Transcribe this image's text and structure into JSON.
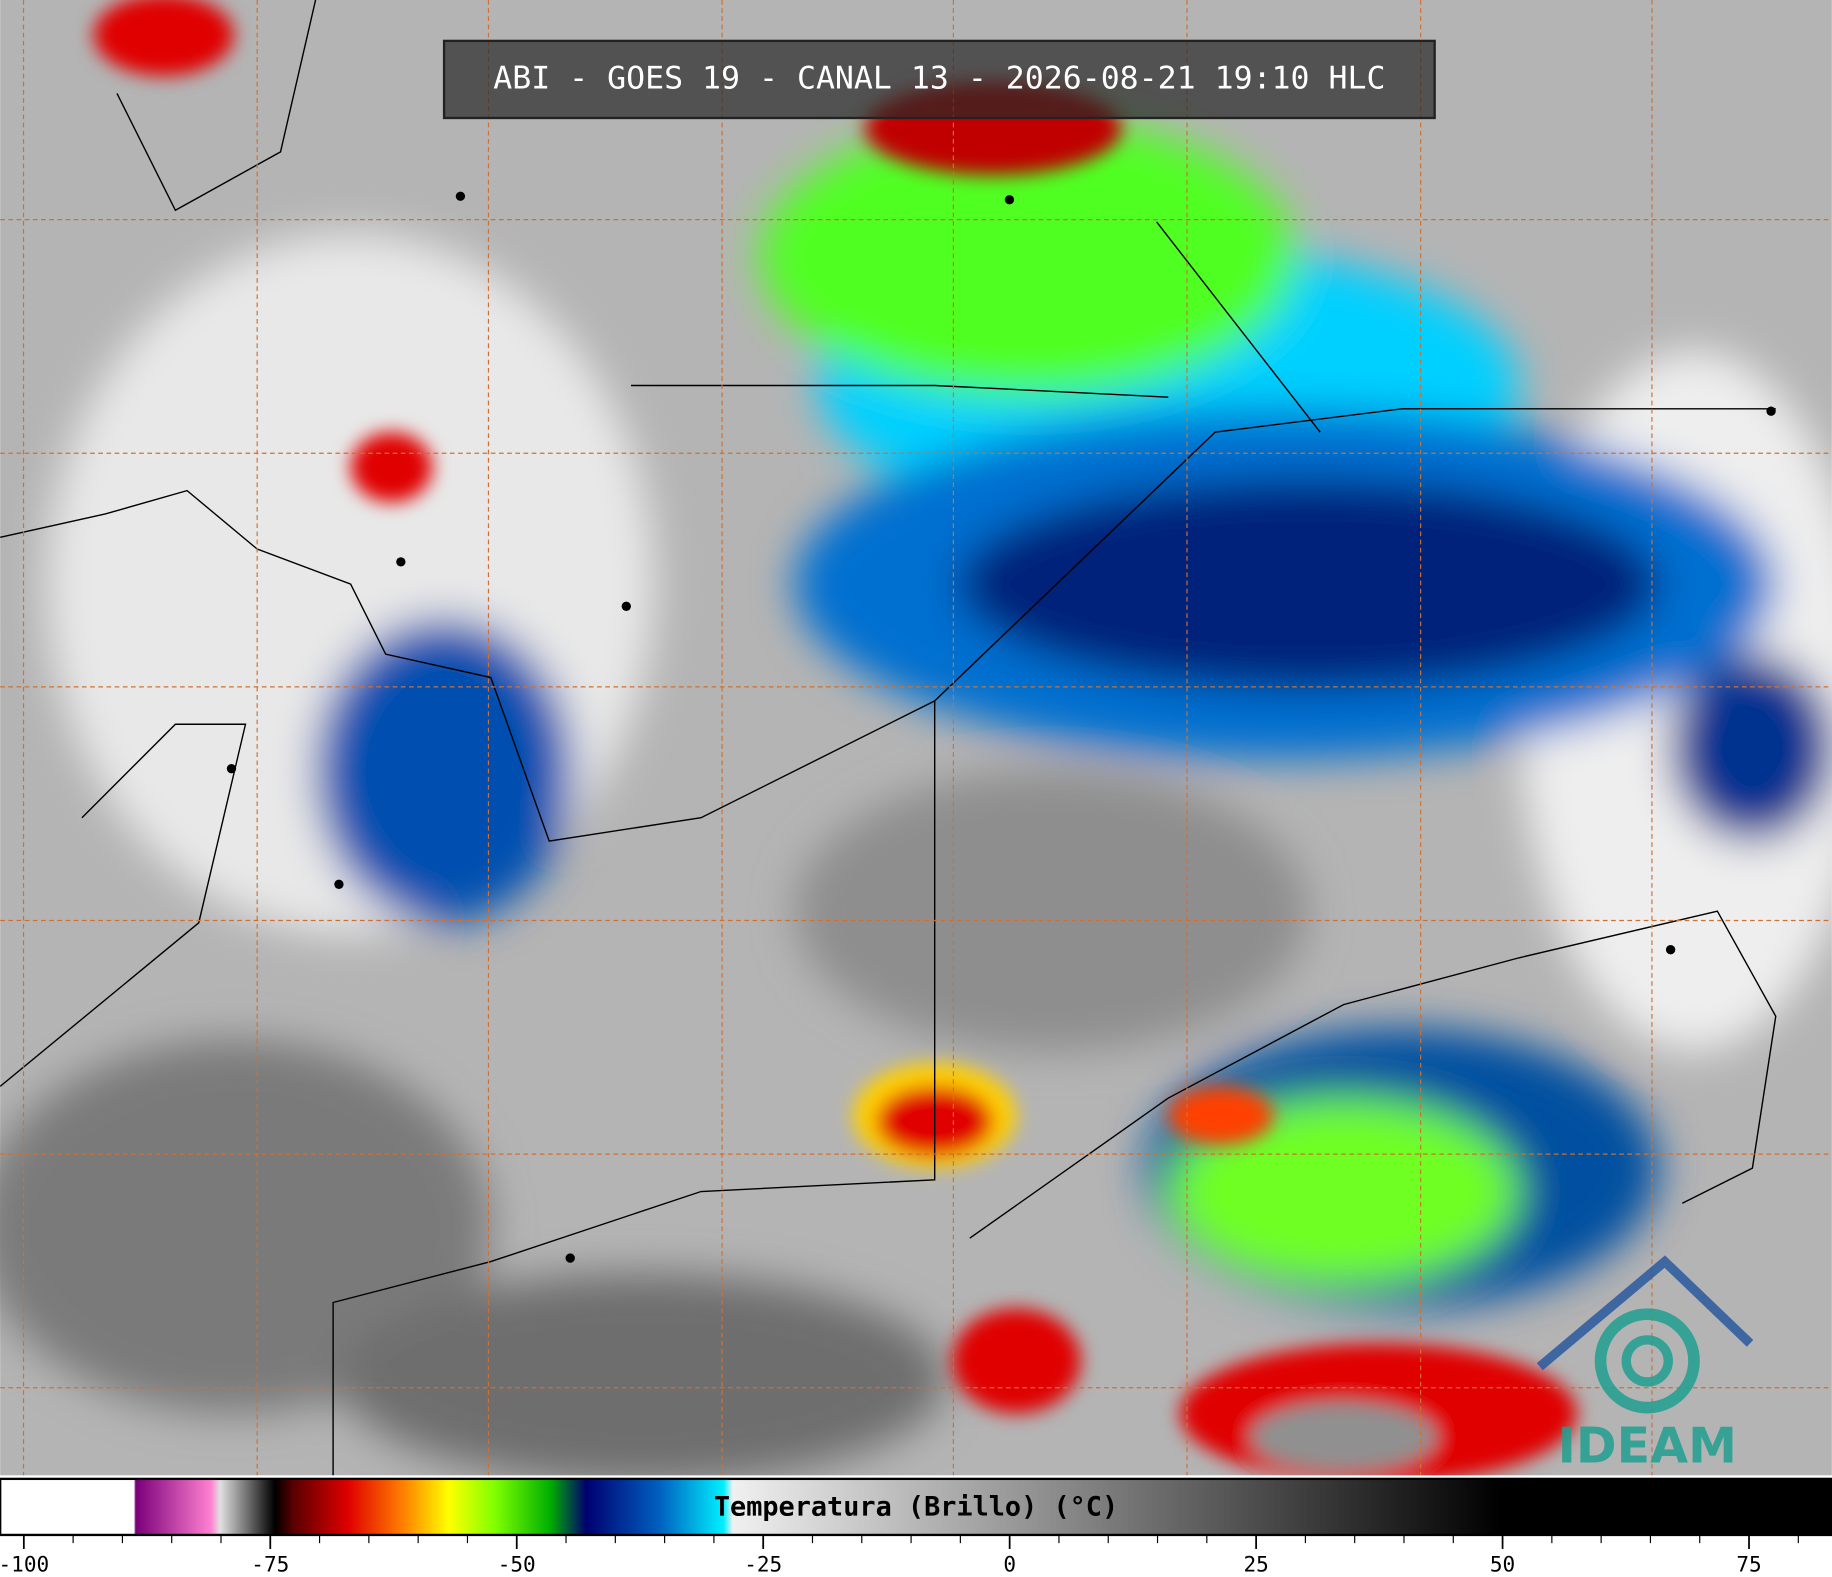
{
  "title": "ABI - GOES 19 - CANAL 13 - 2026-08-21 19:10 HLC",
  "colorbar": {
    "label": "Temperatura (Brillo) (°C)",
    "lim": [
      -102.4,
      83.4
    ],
    "ticks": [
      -100,
      -75,
      -50,
      -25,
      0,
      25,
      50,
      75
    ],
    "minor_ticks": [
      -95,
      -90,
      -85,
      -80,
      -70,
      -65,
      -60,
      -55,
      -45,
      -40,
      -35,
      -30,
      -20,
      -15,
      -10,
      -5,
      5,
      10,
      15,
      20,
      30,
      35,
      40,
      45,
      55,
      60,
      65,
      70,
      80
    ]
  },
  "logo": "IDEAM"
}
